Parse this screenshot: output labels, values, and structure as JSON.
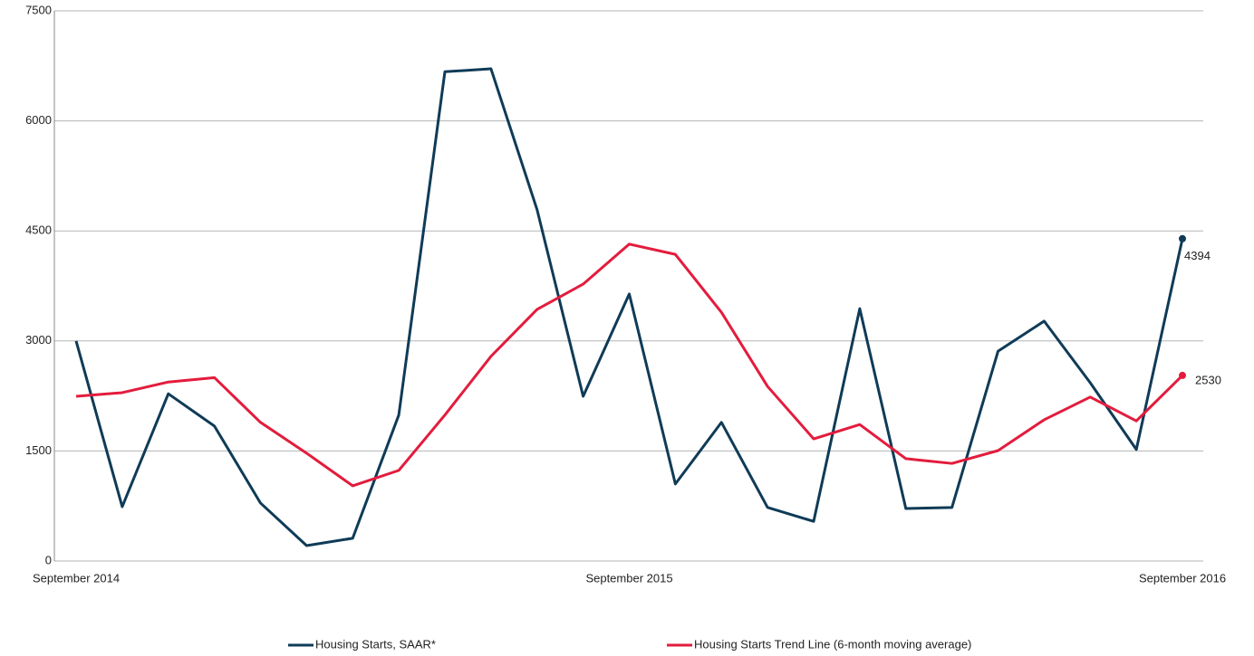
{
  "chart_data": {
    "type": "line",
    "categories": [
      "September 2014",
      null,
      null,
      null,
      null,
      null,
      null,
      null,
      null,
      null,
      null,
      null,
      "September 2015",
      null,
      null,
      null,
      null,
      null,
      null,
      null,
      null,
      null,
      null,
      null,
      "September 2016"
    ],
    "series": [
      {
        "name": "Housing Starts, SAAR*",
        "color": "#0f3b57",
        "values": [
          3000,
          740,
          2280,
          1840,
          790,
          210,
          310,
          1990,
          6670,
          6710,
          4790,
          2245,
          3640,
          1050,
          1890,
          730,
          540,
          3440,
          715,
          730,
          2860,
          3270,
          2430,
          1520,
          4394
        ]
      },
      {
        "name": "Housing Starts Trend Line (6-month moving average)",
        "color": "#e31c3d",
        "values": [
          2245,
          2295,
          2440,
          2500,
          1890,
          1470,
          1025,
          1235,
          1990,
          2790,
          3430,
          3775,
          4320,
          4180,
          3390,
          2380,
          1665,
          1860,
          1395,
          1330,
          1505,
          1925,
          2235,
          1910,
          2530
        ]
      }
    ],
    "ylim": [
      0,
      7500
    ],
    "yticks": [
      0,
      1500,
      3000,
      4500,
      6000,
      7500
    ],
    "grid": true,
    "legend": "bottom"
  }
}
